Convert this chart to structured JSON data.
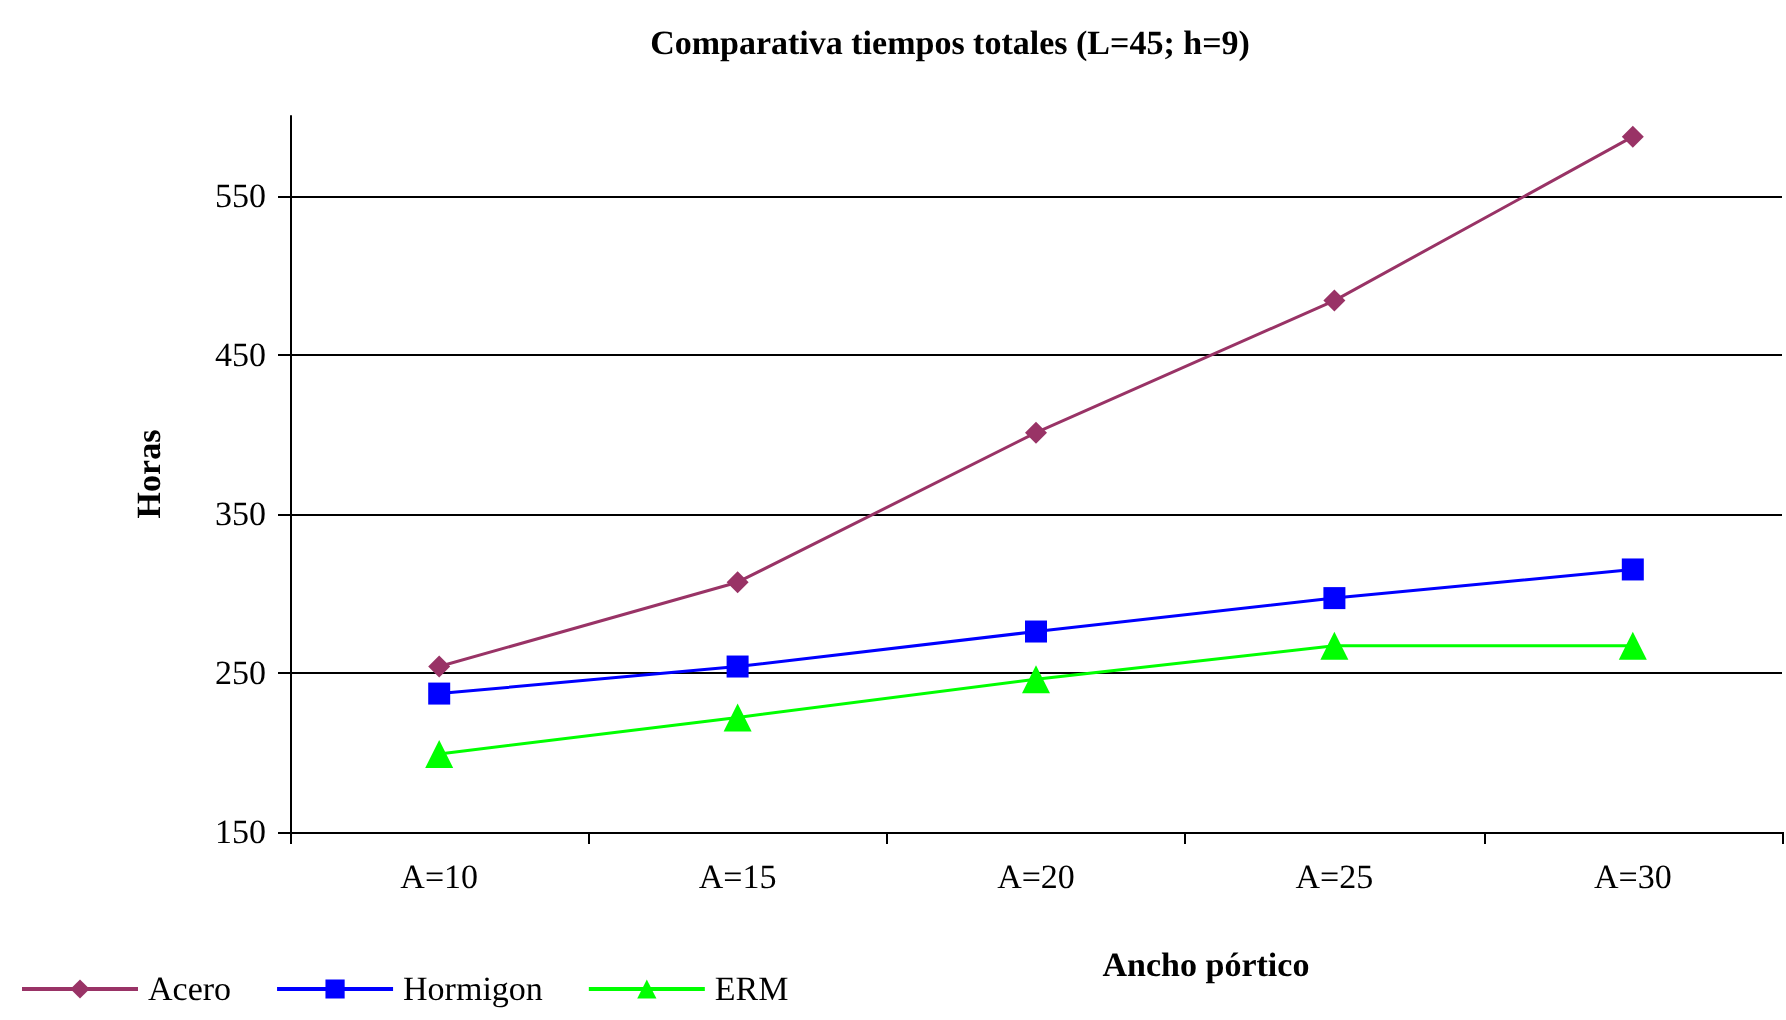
{
  "chart_data": {
    "type": "line",
    "title": "Comparativa tiempos totales (L=45; h=9)",
    "xlabel": "Ancho pórtico",
    "ylabel": "Horas",
    "categories": [
      "A=10",
      "A=15",
      "A=20",
      "A=25",
      "A=30"
    ],
    "series": [
      {
        "name": "Acero",
        "color": "#993366",
        "marker": "diamond",
        "values": [
          254,
          307,
          401,
          484,
          587
        ]
      },
      {
        "name": "Hormigon",
        "color": "#0000ff",
        "marker": "square",
        "values": [
          237,
          254,
          276,
          297,
          315
        ]
      },
      {
        "name": "ERM",
        "color": "#00ff00",
        "marker": "triangle",
        "values": [
          199,
          222,
          246,
          267,
          267
        ]
      }
    ],
    "ylim": [
      150,
      600
    ],
    "yticks": [
      150,
      250,
      350,
      450,
      550
    ],
    "grid": "y",
    "legend": "bottom left",
    "line_style": "solid"
  }
}
